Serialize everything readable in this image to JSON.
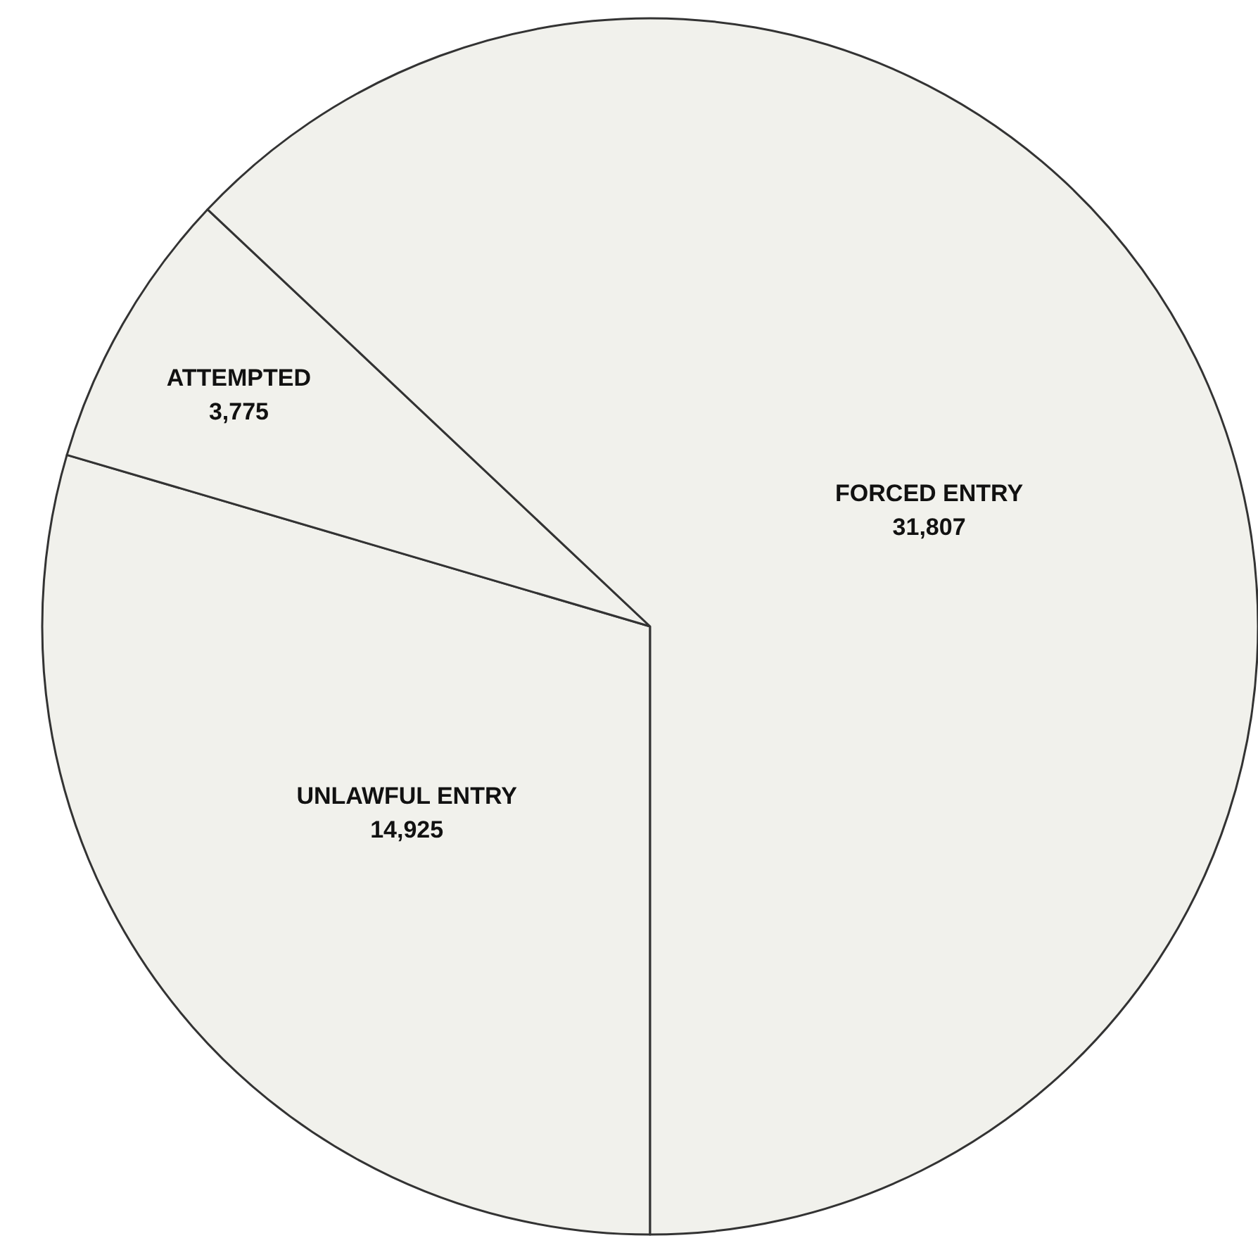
{
  "chart_data": {
    "type": "pie",
    "categories": [
      "UNLAWFUL ENTRY",
      "ATTEMPTED",
      "FORCED ENTRY"
    ],
    "values": [
      14925,
      3775,
      31807
    ],
    "value_labels": [
      "14,925",
      "3,775",
      "31,807"
    ],
    "colors": [
      "#f1f1ec",
      "#f1f1ec",
      "#f1f1ec"
    ]
  }
}
